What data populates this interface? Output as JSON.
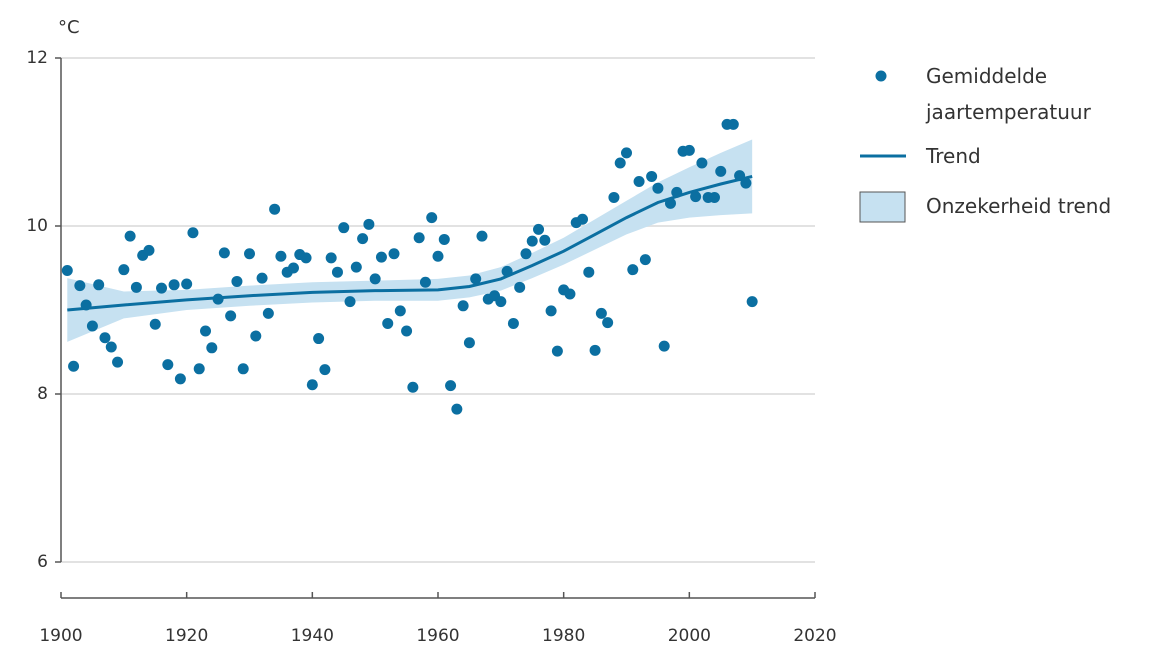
{
  "chart_data": {
    "type": "scatter",
    "y_label": "°C",
    "xlim": [
      1900,
      2020
    ],
    "xticks": [
      1900,
      1920,
      1940,
      1960,
      1980,
      2000,
      2020
    ],
    "ylim": [
      6,
      12
    ],
    "yticks": [
      6,
      8,
      10,
      12
    ],
    "grid": true,
    "legend": "right",
    "series": [
      {
        "name": "Gemiddelde jaartemperatuur",
        "type": "scatter",
        "color": "#0b6fa1",
        "x": [
          1901,
          1902,
          1903,
          1904,
          1905,
          1906,
          1907,
          1908,
          1909,
          1910,
          1911,
          1912,
          1913,
          1914,
          1915,
          1916,
          1917,
          1918,
          1919,
          1920,
          1921,
          1922,
          1923,
          1924,
          1925,
          1926,
          1927,
          1928,
          1929,
          1930,
          1931,
          1932,
          1933,
          1934,
          1935,
          1936,
          1937,
          1938,
          1939,
          1940,
          1941,
          1942,
          1943,
          1944,
          1945,
          1946,
          1947,
          1948,
          1949,
          1950,
          1951,
          1952,
          1953,
          1954,
          1955,
          1956,
          1957,
          1958,
          1959,
          1960,
          1961,
          1962,
          1963,
          1964,
          1965,
          1966,
          1967,
          1968,
          1969,
          1970,
          1971,
          1972,
          1973,
          1974,
          1975,
          1976,
          1977,
          1978,
          1979,
          1980,
          1981,
          1982,
          1983,
          1984,
          1985,
          1986,
          1987,
          1988,
          1989,
          1990,
          1991,
          1992,
          1993,
          1994,
          1995,
          1996,
          1997,
          1998,
          1999,
          2000,
          2001,
          2002,
          2003,
          2004,
          2005,
          2006,
          2007,
          2008,
          2009,
          2010
        ],
        "values": [
          9.47,
          8.33,
          9.29,
          9.06,
          8.81,
          9.3,
          8.67,
          8.56,
          8.38,
          9.48,
          9.88,
          9.27,
          9.65,
          9.71,
          8.83,
          9.26,
          8.35,
          9.3,
          8.18,
          9.31,
          9.92,
          8.3,
          8.75,
          8.55,
          9.13,
          9.68,
          8.93,
          9.34,
          8.3,
          9.67,
          8.69,
          9.38,
          8.96,
          10.2,
          9.64,
          9.45,
          9.5,
          9.66,
          9.62,
          8.11,
          8.66,
          8.29,
          9.62,
          9.45,
          9.98,
          9.1,
          9.51,
          9.85,
          10.02,
          9.37,
          9.63,
          8.84,
          9.67,
          8.99,
          8.75,
          8.08,
          9.86,
          9.33,
          10.1,
          9.64,
          9.84,
          8.1,
          7.82,
          9.05,
          8.61,
          9.37,
          9.88,
          9.13,
          9.17,
          9.1,
          9.46,
          8.84,
          9.27,
          9.67,
          9.82,
          9.96,
          9.83,
          8.99,
          8.51,
          9.24,
          9.19,
          10.04,
          10.08,
          9.45,
          8.52,
          8.96,
          8.85,
          10.34,
          10.75,
          10.87,
          9.48,
          10.53,
          9.6,
          10.59,
          10.45,
          8.57,
          10.27,
          10.4,
          10.89,
          10.9,
          10.35,
          10.75,
          10.34,
          10.34,
          10.65,
          11.21,
          11.21,
          10.6,
          10.51,
          9.1
        ]
      },
      {
        "name": "Trend",
        "type": "line",
        "color": "#0b6fa1",
        "x": [
          1901,
          1910,
          1920,
          1930,
          1940,
          1950,
          1960,
          1965,
          1970,
          1975,
          1980,
          1985,
          1990,
          1995,
          2000,
          2005,
          2010
        ],
        "values": [
          9.0,
          9.06,
          9.12,
          9.17,
          9.21,
          9.23,
          9.24,
          9.28,
          9.37,
          9.53,
          9.7,
          9.9,
          10.1,
          10.28,
          10.4,
          10.5,
          10.59
        ]
      },
      {
        "name": "Onzekerheid trend",
        "type": "band",
        "color": "#c6e1f1",
        "x": [
          1901,
          1910,
          1920,
          1930,
          1940,
          1950,
          1960,
          1965,
          1970,
          1975,
          1980,
          1985,
          1990,
          1995,
          2000,
          2005,
          2010
        ],
        "upper": [
          9.38,
          9.22,
          9.24,
          9.29,
          9.33,
          9.35,
          9.37,
          9.41,
          9.51,
          9.68,
          9.86,
          10.08,
          10.3,
          10.52,
          10.7,
          10.87,
          11.03
        ],
        "lower": [
          8.62,
          8.9,
          9.0,
          9.05,
          9.09,
          9.11,
          9.11,
          9.15,
          9.23,
          9.38,
          9.54,
          9.72,
          9.9,
          10.04,
          10.1,
          10.13,
          10.15
        ]
      }
    ]
  }
}
